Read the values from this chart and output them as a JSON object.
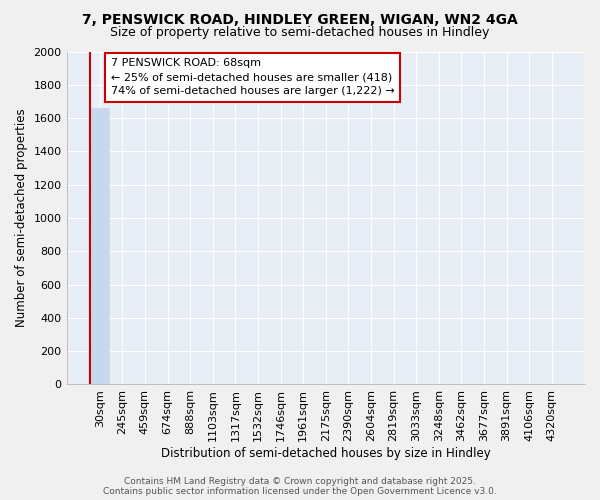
{
  "title1": "7, PENSWICK ROAD, HINDLEY GREEN, WIGAN, WN2 4GA",
  "title2": "Size of property relative to semi-detached houses in Hindley",
  "xlabel": "Distribution of semi-detached houses by size in Hindley",
  "ylabel": "Number of semi-detached properties",
  "categories": [
    "30sqm",
    "245sqm",
    "459sqm",
    "674sqm",
    "888sqm",
    "1103sqm",
    "1317sqm",
    "1532sqm",
    "1746sqm",
    "1961sqm",
    "2175sqm",
    "2390sqm",
    "2604sqm",
    "2819sqm",
    "3033sqm",
    "3248sqm",
    "3462sqm",
    "3677sqm",
    "3891sqm",
    "4106sqm",
    "4320sqm"
  ],
  "values": [
    1660,
    0,
    0,
    0,
    0,
    0,
    0,
    0,
    0,
    0,
    0,
    0,
    0,
    0,
    0,
    0,
    0,
    0,
    0,
    0,
    0
  ],
  "bar_color": "#c5d8ed",
  "bar_edge_color": "#c5d8ed",
  "highlight_bar_index": 0,
  "highlight_line_color": "#cc0000",
  "annotation_text": "7 PENSWICK ROAD: 68sqm\n← 25% of semi-detached houses are smaller (418)\n74% of semi-detached houses are larger (1,222) →",
  "annotation_box_color": "#ffffff",
  "annotation_box_edge_color": "#cc0000",
  "ylim": [
    0,
    2000
  ],
  "yticks": [
    0,
    200,
    400,
    600,
    800,
    1000,
    1200,
    1400,
    1600,
    1800,
    2000
  ],
  "fig_bg_color": "#f0f0f0",
  "plot_bg_color": "#e8eef5",
  "grid_color": "#ffffff",
  "footer_text": "Contains HM Land Registry data © Crown copyright and database right 2025.\nContains public sector information licensed under the Open Government Licence v3.0.",
  "title1_fontsize": 10,
  "title2_fontsize": 9,
  "xlabel_fontsize": 8.5,
  "ylabel_fontsize": 8.5,
  "tick_fontsize": 8,
  "annotation_fontsize": 8,
  "footer_fontsize": 6.5
}
